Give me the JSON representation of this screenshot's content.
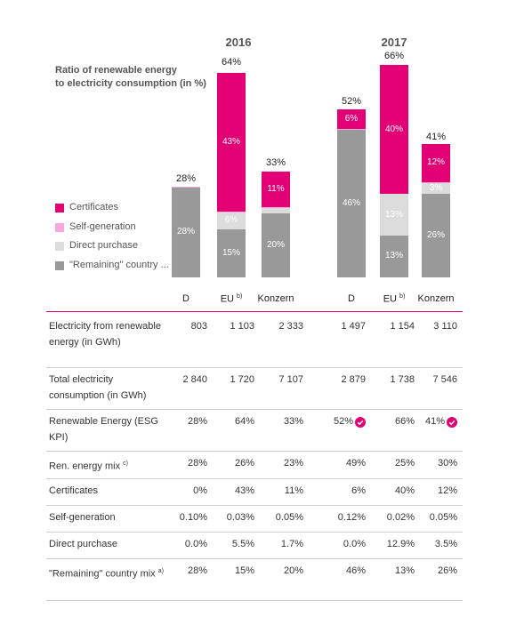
{
  "chart_data": {
    "type": "stacked-bar",
    "title": "Ratio of renewable energy\nto electricity consumption (in %)",
    "groups": [
      "2016",
      "2017"
    ],
    "categories": [
      "D",
      "EU",
      "Konzern",
      "D",
      "EU",
      "Konzern"
    ],
    "category_notes": [
      null,
      "b)",
      null,
      null,
      "b)",
      null
    ],
    "series": [
      {
        "name": "Certificates",
        "color": "#e20074",
        "values": [
          0,
          43,
          11,
          6,
          40,
          12
        ],
        "value_labels": [
          null,
          "43%",
          "11%",
          "6%",
          "40%",
          "12%"
        ]
      },
      {
        "name": "Self-generation",
        "color": "#f7a8e0",
        "values": [
          0.1,
          0.03,
          0.05,
          0.12,
          0.02,
          0.05
        ],
        "value_labels": [
          null,
          null,
          null,
          null,
          null,
          null
        ]
      },
      {
        "name": "Direct purchase",
        "color": "#dcdcdc",
        "values": [
          0.0,
          5.5,
          1.7,
          0.0,
          12.9,
          3.5
        ],
        "value_labels": [
          null,
          "6%",
          null,
          null,
          "13%",
          "3%"
        ]
      },
      {
        "name": "\"Remaining\" country ...",
        "color": "#999999",
        "values": [
          28,
          15,
          20,
          46,
          13,
          26
        ],
        "value_labels": [
          "28%",
          "15%",
          "20%",
          "46%",
          "13%",
          "26%"
        ]
      }
    ],
    "totals": [
      28,
      64,
      33,
      52,
      66,
      41
    ],
    "total_labels": [
      "28%",
      "64%",
      "33%",
      "52%",
      "66%",
      "41%"
    ]
  },
  "table": {
    "rows": [
      {
        "label": "Electricity from renewable energy (in GWh)",
        "note": null,
        "cells": [
          "803",
          "1 103",
          "2 333",
          "1 497",
          "1 154",
          "3 110"
        ]
      },
      {
        "label": "Total electricity consumption (in GWh)",
        "note": null,
        "cells": [
          "2 840",
          "1 720",
          "7 107",
          "2 879",
          "1 738",
          "7 546"
        ]
      },
      {
        "label": "Renewable Energy (ESG KPI)",
        "note": null,
        "cells": [
          "28%",
          "64%",
          "33%",
          "52%",
          "66%",
          "41%"
        ],
        "check": [
          3,
          5
        ]
      },
      {
        "label": "Ren. energy mix",
        "note": "c)",
        "cells": [
          "28%",
          "26%",
          "23%",
          "49%",
          "25%",
          "30%"
        ]
      },
      {
        "label": "Certificates",
        "note": null,
        "cells": [
          "0%",
          "43%",
          "11%",
          "6%",
          "40%",
          "12%"
        ]
      },
      {
        "label": "Self-generation",
        "note": null,
        "cells": [
          "0.10%",
          "0.03%",
          "0.05%",
          "0.12%",
          "0.02%",
          "0.05%"
        ]
      },
      {
        "label": "Direct purchase",
        "note": null,
        "cells": [
          "0.0%",
          "5.5%",
          "1.7%",
          "0.0%",
          "12.9%",
          "3.5%"
        ]
      },
      {
        "label": "\"Remaining\" country mix",
        "note": "a)",
        "cells": [
          "28%",
          "15%",
          "20%",
          "46%",
          "13%",
          "26%"
        ]
      }
    ]
  }
}
